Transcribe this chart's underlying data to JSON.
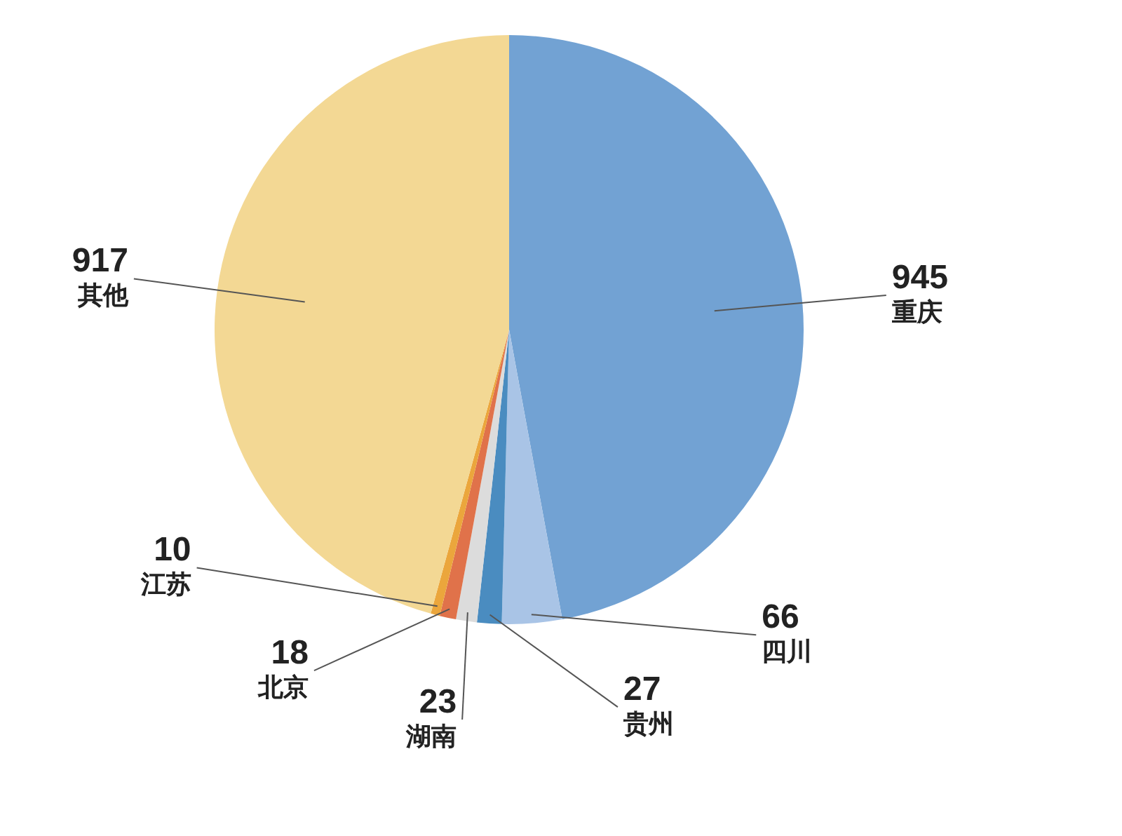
{
  "chart_data": {
    "type": "pie",
    "categories": [
      "重庆",
      "四川",
      "贵州",
      "湖南",
      "北京",
      "江苏",
      "其他"
    ],
    "values": [
      945,
      66,
      27,
      23,
      18,
      10,
      917
    ],
    "colors": [
      "#72a2d3",
      "#a9c4e6",
      "#4a8cc0",
      "#dcdcdc",
      "#e0724a",
      "#eba63c",
      "#f3d894"
    ],
    "data_labels": true
  }
}
